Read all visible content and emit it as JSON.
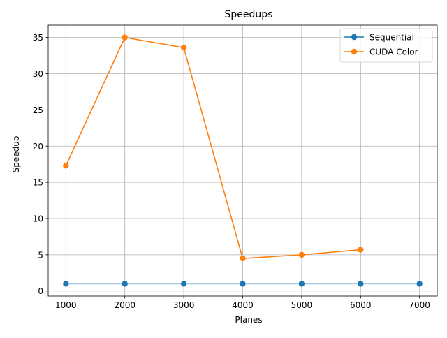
{
  "chart_data": {
    "type": "line",
    "title": "Speedups",
    "xlabel": "Planes",
    "ylabel": "Speedup",
    "xlim": [
      700,
      7300
    ],
    "ylim": [
      -0.7,
      36.7
    ],
    "xticks": [
      1000,
      2000,
      3000,
      4000,
      5000,
      6000,
      7000
    ],
    "yticks": [
      0,
      5,
      10,
      15,
      20,
      25,
      30,
      35
    ],
    "grid": true,
    "legend_position": "top-right",
    "series": [
      {
        "name": "Sequential",
        "color": "#1f77b4",
        "marker": "circle",
        "x": [
          1000,
          2000,
          3000,
          4000,
          5000,
          6000,
          7000
        ],
        "y": [
          1,
          1,
          1,
          1,
          1,
          1,
          1
        ]
      },
      {
        "name": "CUDA Color",
        "color": "#ff7f0e",
        "marker": "circle",
        "x": [
          1000,
          2000,
          3000,
          4000,
          5000,
          6000
        ],
        "y": [
          17.3,
          35.0,
          33.6,
          4.5,
          5.0,
          5.7
        ]
      }
    ]
  }
}
